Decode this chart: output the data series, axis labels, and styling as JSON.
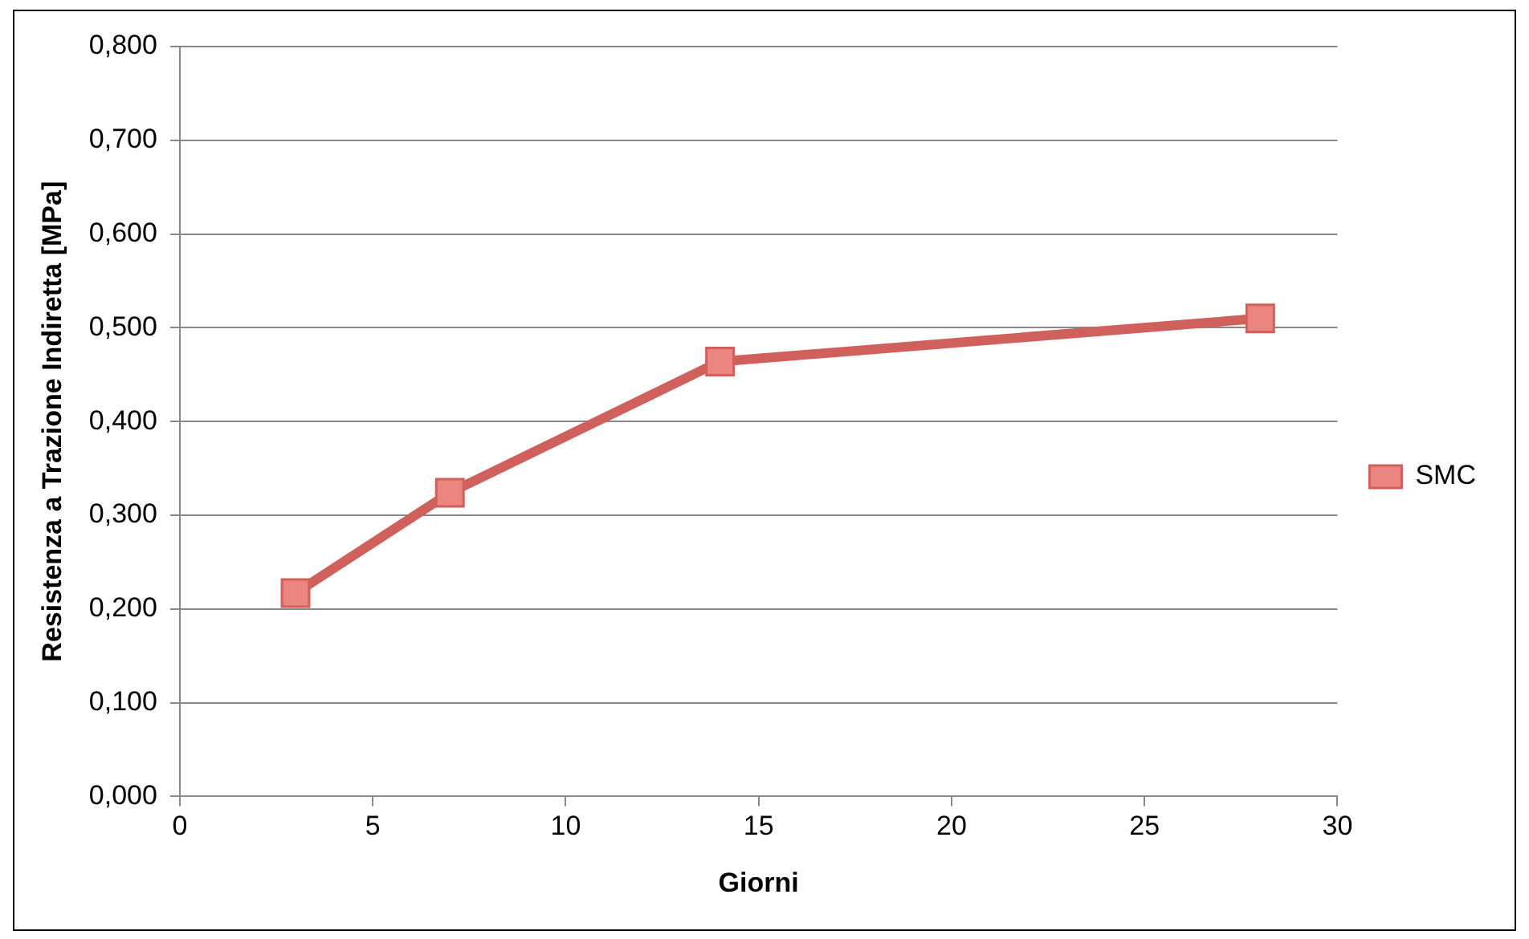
{
  "chart_data": {
    "type": "line",
    "xlabel": "Giorni",
    "ylabel": "Resistenza a Trazione Indiretta [MPa]",
    "x": [
      3,
      7,
      14,
      28
    ],
    "series": [
      {
        "name": "SMC",
        "color": "#d0605b",
        "values": [
          0.217,
          0.324,
          0.464,
          0.51
        ]
      }
    ],
    "xlim": [
      0,
      30
    ],
    "xticks": [
      0,
      5,
      10,
      15,
      20,
      25,
      30
    ],
    "ylim": [
      0,
      0.8
    ],
    "yticks": [
      {
        "value": 0,
        "label": "0,000"
      },
      {
        "value": 0.1,
        "label": "0,100"
      },
      {
        "value": 0.2,
        "label": "0,200"
      },
      {
        "value": 0.3,
        "label": "0,300"
      },
      {
        "value": 0.4,
        "label": "0,400"
      },
      {
        "value": 0.5,
        "label": "0,500"
      },
      {
        "value": 0.6,
        "label": "0,600"
      },
      {
        "value": 0.7,
        "label": "0,700"
      },
      {
        "value": 0.8,
        "label": "0,800"
      }
    ],
    "grid": "y",
    "legend": "right",
    "marker": "square",
    "line_style": "solid"
  }
}
